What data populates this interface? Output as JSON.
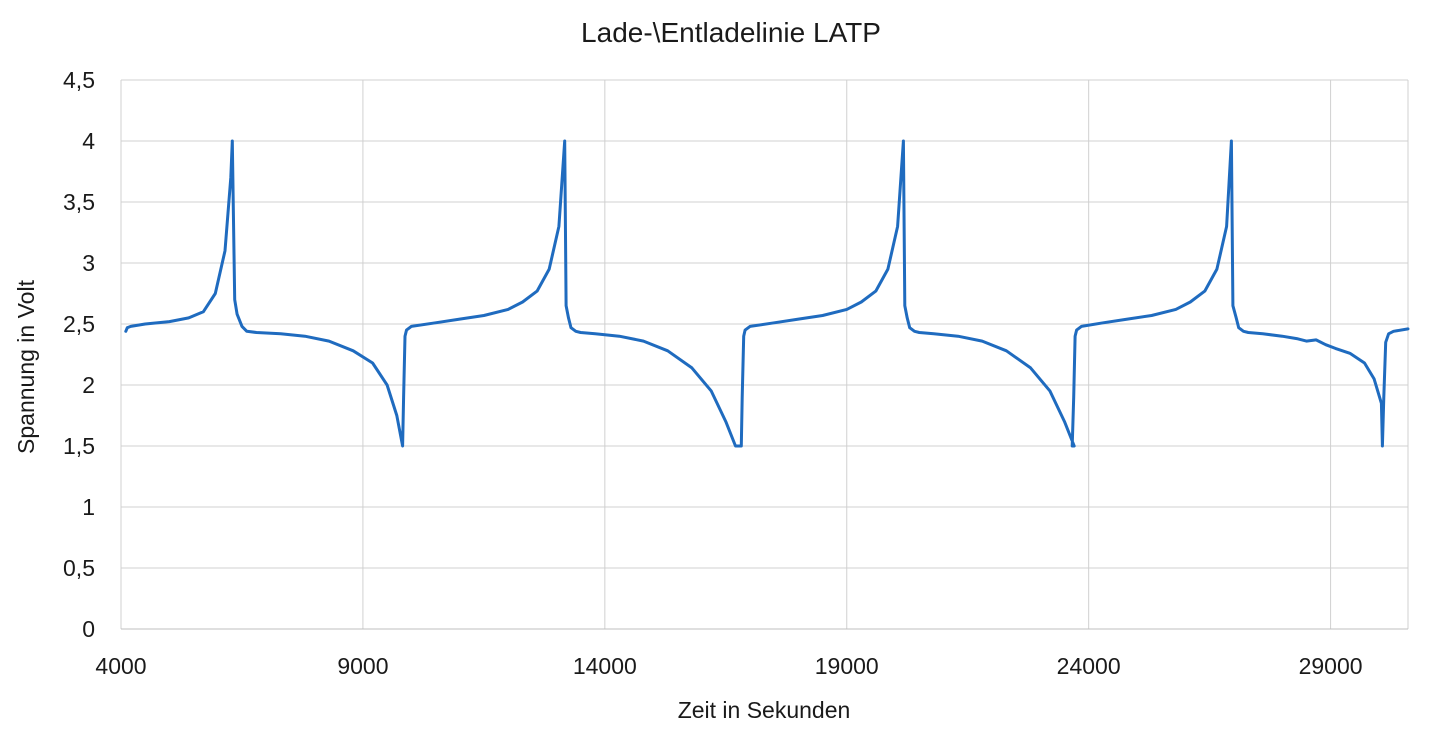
{
  "chart_data": {
    "type": "line",
    "title": "Lade-\\Entladelinie LATP",
    "xlabel": "Zeit in Sekunden",
    "ylabel": "Spannung in Volt",
    "xlim": [
      4000,
      30600
    ],
    "ylim": [
      0,
      4.5
    ],
    "x_ticks": [
      4000,
      9000,
      14000,
      19000,
      24000,
      29000
    ],
    "x_tick_labels": [
      "4000",
      "9000",
      "14000",
      "19000",
      "24000",
      "29000"
    ],
    "y_ticks": [
      0,
      0.5,
      1,
      1.5,
      2,
      2.5,
      3,
      3.5,
      4,
      4.5
    ],
    "y_tick_labels": [
      "0",
      "0,5",
      "1",
      "1,5",
      "2",
      "2,5",
      "3",
      "3,5",
      "4",
      "4,5"
    ],
    "grid": true,
    "legend": "none",
    "series": [
      {
        "color": "#1f6bbf",
        "x": [
          4100,
          4130,
          4200,
          4500,
          5000,
          5400,
          5700,
          5950,
          6150,
          6270,
          6300,
          6350,
          6400,
          6500,
          6600,
          6800,
          7300,
          7800,
          8300,
          8800,
          9200,
          9500,
          9700,
          9820,
          9840,
          9870,
          9900,
          10000,
          10500,
          11000,
          11500,
          12000,
          12300,
          12600,
          12850,
          13050,
          13170,
          13200,
          13250,
          13300,
          13400,
          13500,
          13800,
          14300,
          14800,
          15300,
          15800,
          16200,
          16500,
          16700,
          16820,
          16840,
          16870,
          16900,
          17000,
          17500,
          18000,
          18500,
          19000,
          19300,
          19600,
          19850,
          20050,
          20170,
          20200,
          20250,
          20300,
          20400,
          20500,
          20800,
          21300,
          21800,
          22300,
          22800,
          23200,
          23500,
          23700,
          23660,
          23690,
          23720,
          23750,
          23850,
          24300,
          24800,
          25300,
          25800,
          26100,
          26400,
          26650,
          26850,
          26950,
          26980,
          27050,
          27100,
          27200,
          27300,
          27600,
          28000,
          28300,
          28500,
          28700,
          28900,
          29100,
          29400,
          29700,
          29900,
          30050,
          30070,
          30100,
          30140,
          30200,
          30300,
          30600
        ],
        "y": [
          2.44,
          2.47,
          2.48,
          2.5,
          2.52,
          2.55,
          2.6,
          2.75,
          3.1,
          3.7,
          4.0,
          2.7,
          2.58,
          2.48,
          2.44,
          2.43,
          2.42,
          2.4,
          2.36,
          2.28,
          2.18,
          2.0,
          1.75,
          1.5,
          1.9,
          2.4,
          2.45,
          2.48,
          2.51,
          2.54,
          2.57,
          2.62,
          2.68,
          2.77,
          2.95,
          3.3,
          4.0,
          2.65,
          2.55,
          2.47,
          2.44,
          2.43,
          2.42,
          2.4,
          2.36,
          2.28,
          2.14,
          1.95,
          1.7,
          1.5,
          1.5,
          1.9,
          2.4,
          2.45,
          2.48,
          2.51,
          2.54,
          2.57,
          2.62,
          2.68,
          2.77,
          2.95,
          3.3,
          4.0,
          2.65,
          2.55,
          2.47,
          2.44,
          2.43,
          2.42,
          2.4,
          2.36,
          2.28,
          2.14,
          1.95,
          1.7,
          1.5,
          1.5,
          1.9,
          2.4,
          2.45,
          2.48,
          2.51,
          2.54,
          2.57,
          2.62,
          2.68,
          2.77,
          2.95,
          3.3,
          4.0,
          2.65,
          2.55,
          2.47,
          2.44,
          2.43,
          2.42,
          2.4,
          2.38,
          2.36,
          2.37,
          2.33,
          2.3,
          2.26,
          2.18,
          2.05,
          1.85,
          1.5,
          1.9,
          2.35,
          2.42,
          2.44,
          2.46
        ]
      }
    ]
  }
}
